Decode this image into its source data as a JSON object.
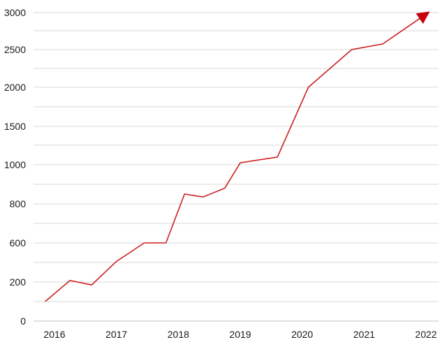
{
  "chart_data": {
    "type": "line",
    "title": "",
    "xlabel": "",
    "ylabel": "",
    "y_scale": "piecewise-linear (gridline step 200 from 0 to 1000, then 500 from 1000 to 3000)",
    "grid": "horizontal",
    "legend": "none",
    "end_marker": "arrow",
    "y_ticks": [
      "0",
      "200",
      "600",
      "800",
      "1000",
      "1500",
      "2000",
      "2500",
      "3000"
    ],
    "x_ticks": [
      "2016",
      "2017",
      "2018",
      "2019",
      "2020",
      "2021",
      "2022"
    ],
    "x_tick_values": [
      2016,
      2017,
      2018,
      2019,
      2020,
      2021,
      2022
    ],
    "xlim": [
      2015.9,
      2022.35
    ],
    "series": [
      {
        "color": "#cc1f1f",
        "points": [
          [
            2015.85,
            100
          ],
          [
            2016.25,
            215
          ],
          [
            2016.6,
            185
          ],
          [
            2017.0,
            410
          ],
          [
            2017.45,
            600
          ],
          [
            2017.8,
            600
          ],
          [
            2018.1,
            850
          ],
          [
            2018.4,
            835
          ],
          [
            2018.75,
            880
          ],
          [
            2019.0,
            1025
          ],
          [
            2019.6,
            1100
          ],
          [
            2020.1,
            2000
          ],
          [
            2020.8,
            2500
          ],
          [
            2021.3,
            2575
          ],
          [
            2021.95,
            2950
          ]
        ]
      }
    ],
    "arrow_color": "#c8000a"
  }
}
